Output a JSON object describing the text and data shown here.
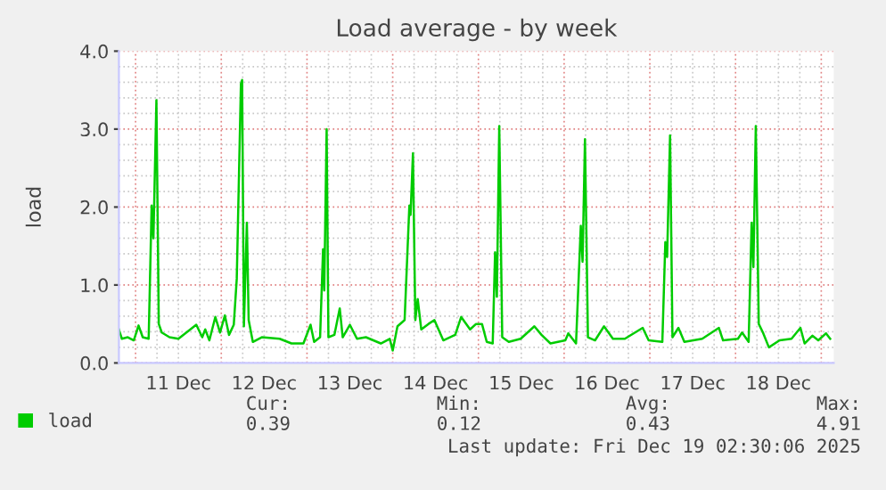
{
  "chart_data": {
    "type": "line",
    "title": "Load average - by week",
    "ylabel": "load",
    "x": [
      "2025-12-10T19:20",
      "2025-12-10T20:10",
      "2025-12-10T21:50",
      "2025-12-10T23:30",
      "2025-12-11T00:50",
      "2025-12-11T02:00",
      "2025-12-11T03:40",
      "2025-12-11T04:30",
      "2025-12-11T05:00",
      "2025-12-11T05:50",
      "2025-12-11T06:30",
      "2025-12-11T07:20",
      "2025-12-11T09:30",
      "2025-12-11T12:00",
      "2025-12-11T17:00",
      "2025-12-11T18:40",
      "2025-12-11T19:30",
      "2025-12-11T20:40",
      "2025-12-11T22:20",
      "2025-12-11T23:40",
      "2025-12-12T01:00",
      "2025-12-12T02:10",
      "2025-12-12T03:30",
      "2025-12-12T04:20",
      "2025-12-12T05:30",
      "2025-12-12T05:50",
      "2025-12-12T06:20",
      "2025-12-12T07:10",
      "2025-12-12T07:40",
      "2025-12-12T08:50",
      "2025-12-12T11:20",
      "2025-12-12T16:20",
      "2025-12-12T19:40",
      "2025-12-12T23:00",
      "2025-12-13T01:00",
      "2025-12-13T02:00",
      "2025-12-13T03:40",
      "2025-12-13T04:30",
      "2025-12-13T04:50",
      "2025-12-13T05:30",
      "2025-12-13T06:00",
      "2025-12-13T07:40",
      "2025-12-13T09:10",
      "2025-12-13T10:00",
      "2025-12-13T12:00",
      "2025-12-13T14:00",
      "2025-12-13T16:30",
      "2025-12-13T20:40",
      "2025-12-13T23:10",
      "2025-12-14T00:00",
      "2025-12-14T01:20",
      "2025-12-14T03:20",
      "2025-12-14T04:40",
      "2025-12-14T05:00",
      "2025-12-14T05:40",
      "2025-12-14T06:20",
      "2025-12-14T07:00",
      "2025-12-14T08:00",
      "2025-12-14T10:00",
      "2025-12-14T11:40",
      "2025-12-14T14:10",
      "2025-12-14T17:30",
      "2025-12-14T19:10",
      "2025-12-14T21:40",
      "2025-12-14T23:20",
      "2025-12-15T01:00",
      "2025-12-15T02:20",
      "2025-12-15T04:00",
      "2025-12-15T04:40",
      "2025-12-15T05:10",
      "2025-12-15T05:50",
      "2025-12-15T06:40",
      "2025-12-15T08:30",
      "2025-12-15T11:50",
      "2025-12-15T15:40",
      "2025-12-15T17:40",
      "2025-12-15T20:10",
      "2025-12-16T00:20",
      "2025-12-16T01:10",
      "2025-12-16T03:20",
      "2025-12-16T04:40",
      "2025-12-16T05:10",
      "2025-12-16T05:50",
      "2025-12-16T06:40",
      "2025-12-16T08:40",
      "2025-12-16T11:10",
      "2025-12-16T13:40",
      "2025-12-16T17:00",
      "2025-12-16T22:00",
      "2025-12-16T23:40",
      "2025-12-17T03:30",
      "2025-12-17T04:20",
      "2025-12-17T04:50",
      "2025-12-17T05:40",
      "2025-12-17T06:20",
      "2025-12-17T08:00",
      "2025-12-17T09:40",
      "2025-12-17T14:40",
      "2025-12-17T19:20",
      "2025-12-17T20:30",
      "2025-12-18T00:40",
      "2025-12-18T01:50",
      "2025-12-18T03:40",
      "2025-12-18T04:30",
      "2025-12-18T05:00",
      "2025-12-18T05:40",
      "2025-12-18T06:30",
      "2025-12-18T07:40",
      "2025-12-18T09:20",
      "2025-12-18T12:20",
      "2025-12-18T15:40",
      "2025-12-18T18:10",
      "2025-12-18T19:20",
      "2025-12-18T21:30",
      "2025-12-18T23:10",
      "2025-12-19T01:20",
      "2025-12-19T02:30"
    ],
    "series": [
      {
        "name": "load",
        "color": "#00cc00",
        "values": [
          0.43,
          0.31,
          0.33,
          0.29,
          0.48,
          0.33,
          0.31,
          2.02,
          1.6,
          3.37,
          0.5,
          0.39,
          0.33,
          0.31,
          0.49,
          0.33,
          0.43,
          0.29,
          0.59,
          0.39,
          0.61,
          0.36,
          0.49,
          1.08,
          3.58,
          3.63,
          0.47,
          1.8,
          0.55,
          0.27,
          0.33,
          0.31,
          0.25,
          0.25,
          0.49,
          0.27,
          0.33,
          1.46,
          0.93,
          3.0,
          0.33,
          0.36,
          0.7,
          0.33,
          0.49,
          0.31,
          0.33,
          0.25,
          0.31,
          0.16,
          0.47,
          0.55,
          2.02,
          1.9,
          2.69,
          0.55,
          0.82,
          0.43,
          0.5,
          0.55,
          0.29,
          0.36,
          0.59,
          0.43,
          0.5,
          0.5,
          0.27,
          0.25,
          1.42,
          0.85,
          3.04,
          0.33,
          0.27,
          0.31,
          0.47,
          0.36,
          0.25,
          0.29,
          0.38,
          0.25,
          1.76,
          1.3,
          2.87,
          0.33,
          0.29,
          0.47,
          0.31,
          0.31,
          0.45,
          0.29,
          0.27,
          1.55,
          1.36,
          2.92,
          0.33,
          0.45,
          0.27,
          0.31,
          0.45,
          0.29,
          0.31,
          0.39,
          0.27,
          1.8,
          1.23,
          3.04,
          0.5,
          0.39,
          0.2,
          0.29,
          0.31,
          0.45,
          0.25,
          0.35,
          0.29,
          0.38,
          0.31
        ]
      }
    ],
    "xlim": [
      "2025-12-10T19:20",
      "2025-12-19T03:30"
    ],
    "xticks": [
      {
        "value": "2025-12-11T12:00",
        "label": "11 Dec"
      },
      {
        "value": "2025-12-12T12:00",
        "label": "12 Dec"
      },
      {
        "value": "2025-12-13T12:00",
        "label": "13 Dec"
      },
      {
        "value": "2025-12-14T12:00",
        "label": "14 Dec"
      },
      {
        "value": "2025-12-15T12:00",
        "label": "15 Dec"
      },
      {
        "value": "2025-12-16T12:00",
        "label": "16 Dec"
      },
      {
        "value": "2025-12-17T12:00",
        "label": "17 Dec"
      },
      {
        "value": "2025-12-18T12:00",
        "label": "18 Dec"
      }
    ],
    "ylim": [
      0,
      4
    ],
    "yticks": [
      {
        "value": 0,
        "label": "0.0"
      },
      {
        "value": 1,
        "label": "1.0"
      },
      {
        "value": 2,
        "label": "2.0"
      },
      {
        "value": 3,
        "label": "3.0"
      },
      {
        "value": 4,
        "label": "4.0"
      }
    ],
    "grid": true,
    "legend": "bottom left",
    "marker": "none",
    "line_style": "solid",
    "annotations": [
      "Cur:\n0.39",
      "Min:\n0.12",
      "Avg:\n0.43",
      "Max:\n4.91",
      "Last update: Fri Dec 19 02:30:06 2025"
    ]
  }
}
